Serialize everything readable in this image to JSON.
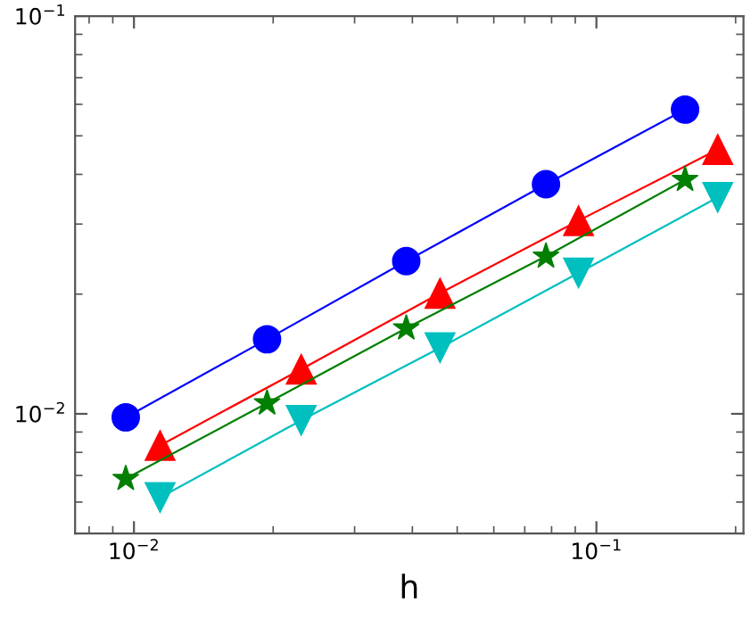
{
  "chart_data": {
    "type": "line",
    "xlabel": "h",
    "log": "xy",
    "grid": false,
    "xlim": [
      0.00746,
      0.208
    ],
    "ylim": [
      0.005,
      0.1
    ],
    "xticks": [
      {
        "value": 0.01,
        "label": "10$^{−2}$"
      },
      {
        "value": 0.1,
        "label": "10$^{−1}$"
      }
    ],
    "yticks": [
      {
        "value": 0.01,
        "label": "10$^{−2}$"
      },
      {
        "value": 0.1,
        "label": "10$^{−1}$"
      }
    ],
    "series": [
      {
        "color": "#0000ff",
        "marker": "circle",
        "x": [
          0.0096,
          0.0194,
          0.0388,
          0.0778,
          0.1555
        ],
        "values": [
          0.0098,
          0.0154,
          0.0242,
          0.0378,
          0.0582
        ]
      },
      {
        "color": "#ff0000",
        "marker": "triangle",
        "x": [
          0.01139,
          0.023,
          0.0459,
          0.0915,
          0.183
        ],
        "values": [
          0.00833,
          0.01295,
          0.0201,
          0.0306,
          0.0462
        ]
      },
      {
        "color": "#007f00",
        "marker": "star",
        "x": [
          0.0096,
          0.0194,
          0.0388,
          0.0778,
          0.1555
        ],
        "values": [
          0.00687,
          0.01064,
          0.01642,
          0.0249,
          0.0388
        ]
      },
      {
        "color": "#00bfbf",
        "marker": "triangle_down",
        "x": [
          0.01139,
          0.023,
          0.0459,
          0.0915,
          0.183
        ],
        "values": [
          0.00616,
          0.00963,
          0.01466,
          0.0226,
          0.035
        ]
      }
    ]
  }
}
